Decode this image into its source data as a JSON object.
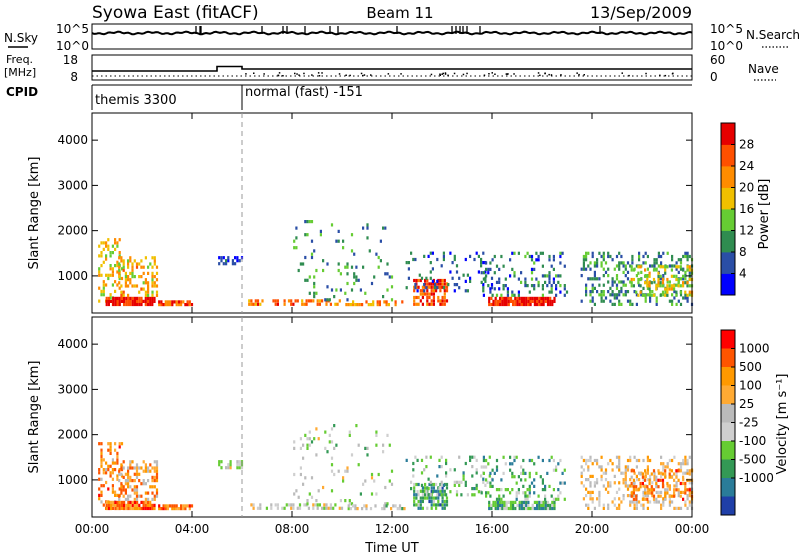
{
  "header": {
    "title": "Syowa East (fitACF)",
    "beam": "Beam 11",
    "date": "13/Sep/2009"
  },
  "side_labels": {
    "nsky": "N.Sky",
    "nsearch": "N.Search",
    "freq_top": "Freq.",
    "freq_unit": "[MHz]",
    "nave": "Nave",
    "cpid": "CPID"
  },
  "noise_panel": {
    "left_ticks": [
      "10^5",
      "10^0"
    ],
    "right_ticks": [
      "10^5",
      "10^0"
    ]
  },
  "freq_panel": {
    "left_ticks": [
      "18",
      "8"
    ],
    "right_ticks": [
      "60",
      "0"
    ]
  },
  "cpid_panel": {
    "segments": [
      {
        "label": "themis 3300",
        "start_hour": 0
      },
      {
        "label": "normal (fast) -151",
        "start_hour": 6
      }
    ]
  },
  "colors": {
    "power": [
      "#0000ff",
      "#2a4ea6",
      "#2f8c50",
      "#66cc33",
      "#f0c000",
      "#ff8c00",
      "#ff5000",
      "#e60000"
    ],
    "velocity": [
      "#ff0000",
      "#ff5500",
      "#ff9900",
      "#ffaa33",
      "#bbbbbb",
      "#cfcfcf",
      "#66cc33",
      "#339955",
      "#2a7c99",
      "#1f3fa8"
    ]
  },
  "chart_data": [
    {
      "type": "heatmap",
      "name": "power",
      "ylabel": "Slant Range [km]",
      "ylim": [
        180,
        4600
      ],
      "yticks": [
        1000,
        2000,
        3000,
        4000
      ],
      "xlim": [
        0,
        24
      ],
      "colorbar": {
        "label": "Power [dB]",
        "ticks": [
          "4",
          "8",
          "12",
          "16",
          "20",
          "24",
          "28"
        ]
      }
    },
    {
      "type": "heatmap",
      "name": "velocity",
      "ylabel": "Slant Range [km]",
      "ylim": [
        180,
        4600
      ],
      "yticks": [
        1000,
        2000,
        3000,
        4000
      ],
      "xlim": [
        0,
        24
      ],
      "xlabel": "Time UT",
      "xticks": [
        "00:00",
        "04:00",
        "08:00",
        "12:00",
        "16:00",
        "20:00",
        "00:00"
      ],
      "colorbar": {
        "label": "Velocity [m s⁻¹]",
        "ticks": [
          "1000",
          "500",
          "100",
          "25",
          "-25",
          "-100",
          "-500",
          "-1000"
        ]
      }
    }
  ]
}
